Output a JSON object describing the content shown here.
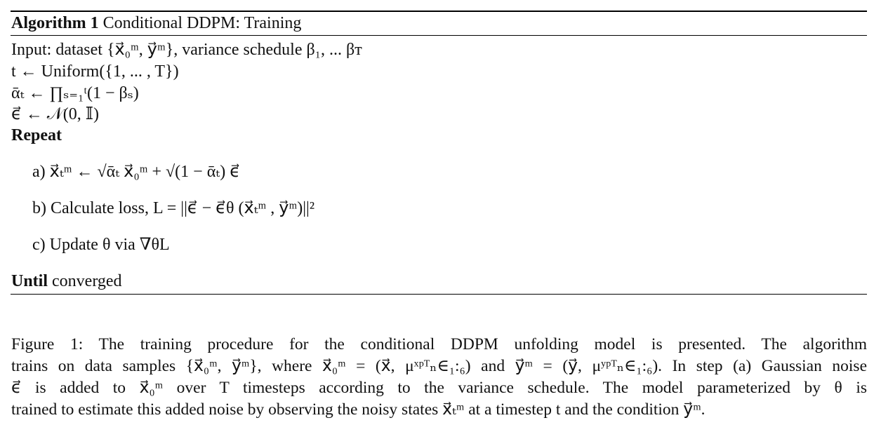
{
  "algorithm": {
    "label": "Algorithm 1",
    "title": "Conditional DDPM: Training",
    "lines": [
      "Input: dataset {x⃗₀ᵐ, y⃗ᵐ}, variance schedule β₁, ... βᴛ",
      "t ← Uniform({1, ... , T})",
      "ᾱₜ ← ∏ₛ₌₁ᵗ(1 − βₛ)",
      "ϵ⃗ ← 𝒩(0, 𝕀)"
    ],
    "repeat": "Repeat",
    "steps": [
      {
        "marker": "a)",
        "text": "x⃗ₜᵐ ← √ᾱₜ x⃗₀ᵐ + √(1 − ᾱₜ) ϵ⃗"
      },
      {
        "marker": "b)",
        "text": "Calculate loss, L = ||ϵ⃗ − ϵ⃗θ (x⃗ₜᵐ , y⃗ᵐ)||²"
      },
      {
        "marker": "c)",
        "text": "Update θ via ∇θL"
      }
    ],
    "until": "Until",
    "until_text": "converged"
  },
  "caption": {
    "lines": [
      "Figure 1: The training procedure for the conditional DDPM unfolding model is presented. The algorithm",
      "trains on data samples {x⃗₀ᵐ, y⃗ᵐ}, where x⃗₀ᵐ = (x⃗, μˣᵖᵀₙ∈₁:₆) and y⃗ᵐ = (y⃗, μʸᵖᵀₙ∈₁:₆). In step (a) Gaussian noise",
      "ϵ⃗ is added to x⃗₀ᵐ over T timesteps according to the variance schedule. The model parameterized by θ is",
      "trained to estimate this added noise by observing the noisy states x⃗ₜᵐ at a timestep t and the condition y⃗ᵐ."
    ]
  }
}
